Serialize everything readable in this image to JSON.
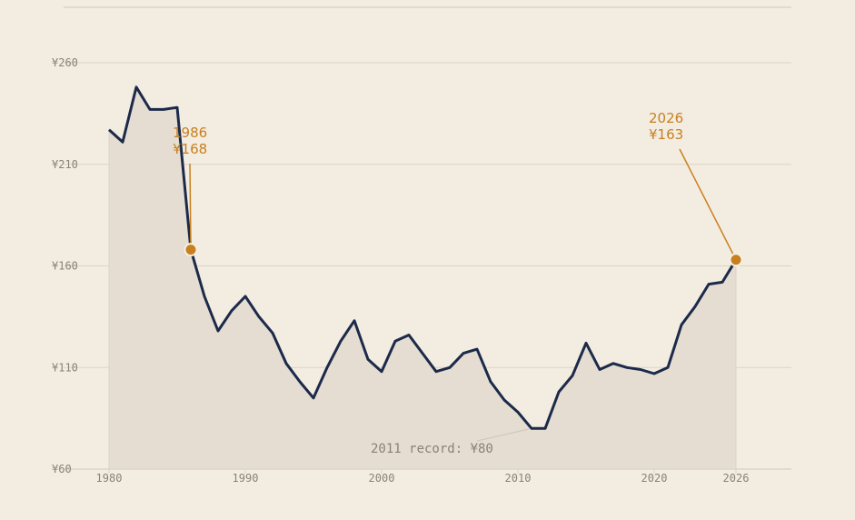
{
  "chart_data": {
    "type": "area",
    "title": "",
    "xlabel": "",
    "ylabel": "",
    "xlim": [
      1979,
      2030
    ],
    "ylim": [
      60,
      270
    ],
    "grid": true,
    "x_ticks": [
      1980,
      1990,
      2000,
      2010,
      2020,
      2026
    ],
    "y_ticks": [
      60,
      110,
      160,
      210,
      260
    ],
    "y_tick_labels": [
      "¥60",
      "¥110",
      "¥160",
      "¥210",
      "¥260"
    ],
    "x": [
      1980,
      1981,
      1982,
      1983,
      1984,
      1985,
      1986,
      1987,
      1988,
      1989,
      1990,
      1991,
      1992,
      1993,
      1994,
      1995,
      1996,
      1997,
      1998,
      1999,
      2000,
      2001,
      2002,
      2003,
      2004,
      2005,
      2006,
      2007,
      2008,
      2009,
      2010,
      2011,
      2012,
      2013,
      2014,
      2015,
      2016,
      2017,
      2018,
      2019,
      2020,
      2021,
      2022,
      2023,
      2024,
      2025,
      2026
    ],
    "series": [
      {
        "values": [
          227,
          221,
          248,
          237,
          237,
          238,
          168,
          145,
          128,
          138,
          145,
          135,
          127,
          112,
          103,
          95,
          110,
          123,
          133,
          114,
          108,
          123,
          126,
          117,
          108,
          110,
          117,
          119,
          103,
          94,
          88,
          80,
          80,
          98,
          106,
          122,
          109,
          112,
          110,
          109,
          107,
          110,
          131,
          140,
          151,
          152,
          163
        ]
      }
    ],
    "annotations": [
      {
        "x": 1986,
        "y": 168,
        "year_label": "1986",
        "value_label": "¥168"
      },
      {
        "x": 2026,
        "y": 163,
        "year_label": "2026",
        "value_label": "¥163"
      }
    ],
    "record_note": "2011 record: ¥80",
    "colors": {
      "line": "#1c2a4a",
      "area": "#e5ddd2",
      "accent": "#c8801f",
      "grid": "#ddd3c2",
      "text": "#8a8276"
    }
  }
}
